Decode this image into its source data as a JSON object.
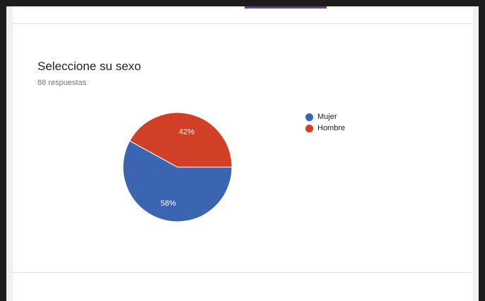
{
  "question": {
    "title": "Seleccione su sexo",
    "responses": "88 respuestas"
  },
  "colors": {
    "accent": "#673ab7",
    "mujer": "#3b64b1",
    "hombre": "#d13f27"
  },
  "chart_data": {
    "type": "pie",
    "title": "Seleccione su sexo",
    "subtitle": "88 respuestas",
    "legend_position": "right",
    "slices": [
      {
        "label": "Mujer",
        "value": 58,
        "display": "58%",
        "color": "#3b64b1"
      },
      {
        "label": "Hombre",
        "value": 42,
        "display": "42%",
        "color": "#d13f27"
      }
    ]
  }
}
